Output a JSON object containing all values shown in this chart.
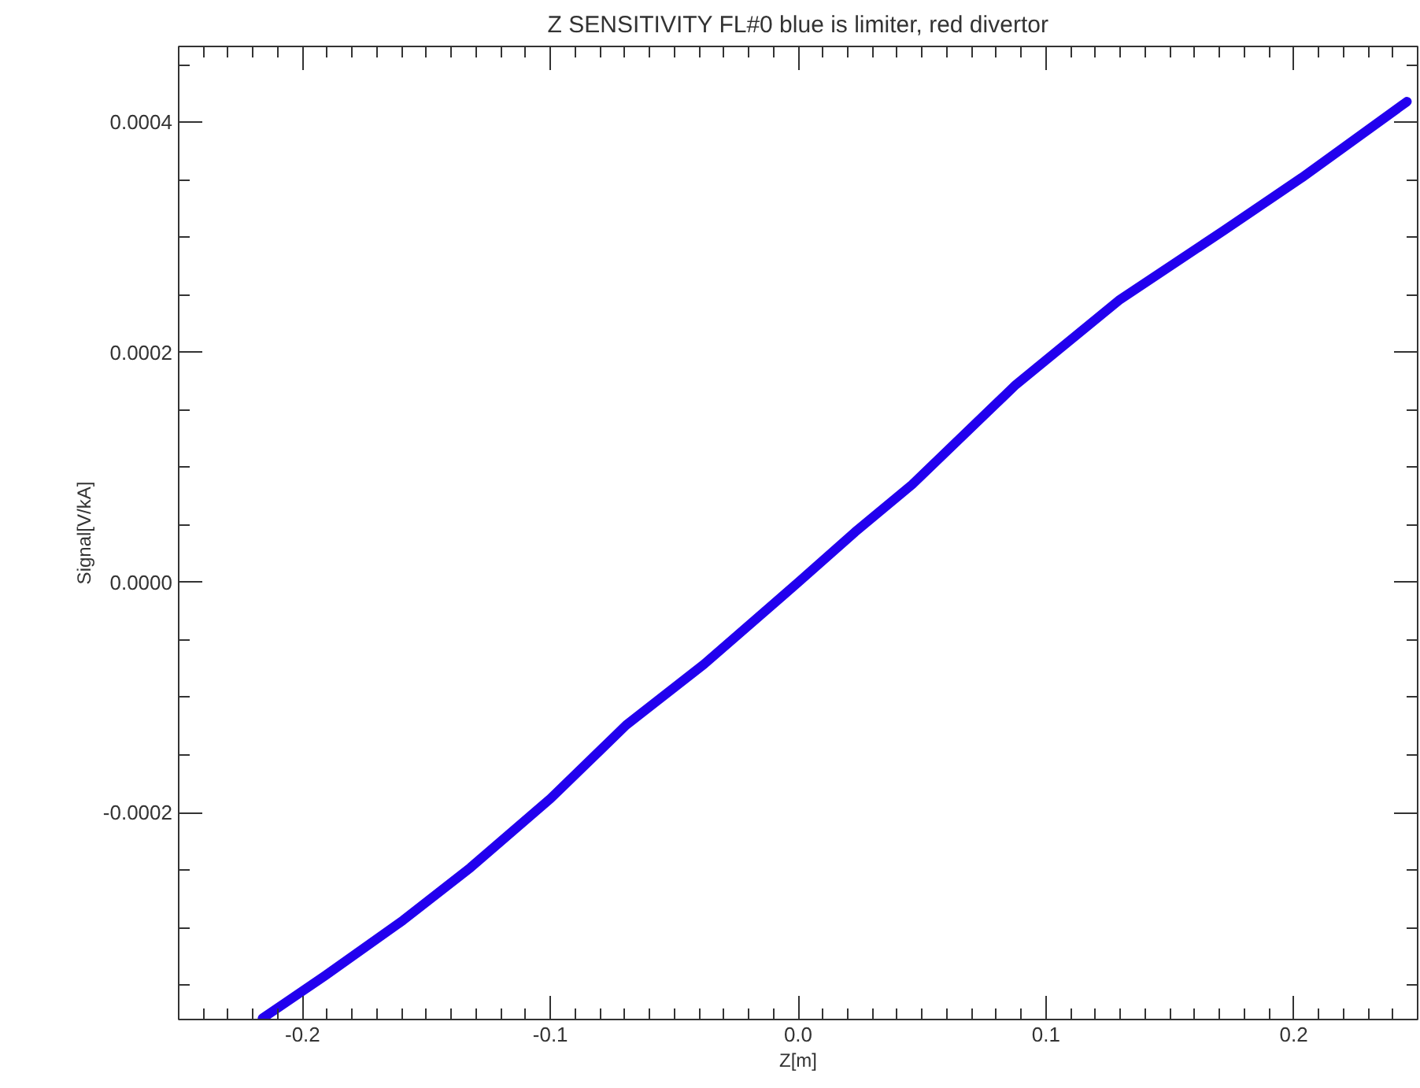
{
  "chart_data": {
    "type": "line",
    "title": "Z SENSITIVITY FL#0 blue is limiter, red divertor",
    "xlabel": "Z[m]",
    "ylabel": "Signal[V/kA]",
    "xlim": [
      -0.25,
      0.25
    ],
    "ylim": [
      -0.00038,
      0.000466
    ],
    "xticks": [
      {
        "value": -0.2,
        "label": "-0.2"
      },
      {
        "value": -0.1,
        "label": "-0.1"
      },
      {
        "value": 0.0,
        "label": "0.0"
      },
      {
        "value": 0.1,
        "label": "0.1"
      },
      {
        "value": 0.2,
        "label": "0.2"
      }
    ],
    "yticks": [
      {
        "value": -0.0002,
        "label": "-0.0002"
      },
      {
        "value": 0.0,
        "label": "0.0000"
      },
      {
        "value": 0.0002,
        "label": "0.0002"
      },
      {
        "value": 0.0004,
        "label": "0.0004"
      }
    ],
    "grid": false,
    "marker": "none",
    "line_style": "solid",
    "series": [
      {
        "color": "#2200ee",
        "x": [
          -0.2162,
          -0.191,
          -0.1596,
          -0.1323,
          -0.1,
          -0.0694,
          -0.038,
          0.0,
          0.0229,
          0.046,
          0.0879,
          0.1299,
          0.1718,
          0.2033,
          0.2457
        ],
        "values": [
          -0.000379,
          -0.000342,
          -0.000294,
          -0.000248,
          -0.000188,
          -0.000124,
          -7.12e-05,
          0.0,
          4.37e-05,
          8.51e-05,
          0.000172,
          0.000246,
          0.000306,
          0.000352,
          0.000418
        ]
      }
    ]
  }
}
